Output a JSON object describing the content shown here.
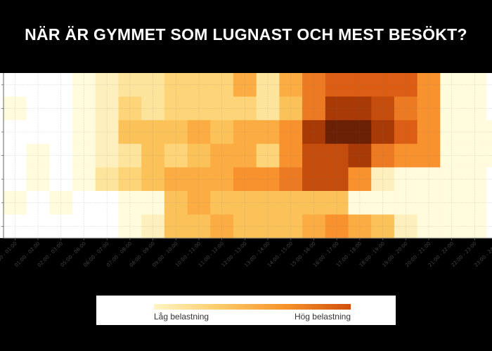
{
  "title": "NÄR ÄR GYMMET SOM LUGNAST OCH MEST BESÖKT?",
  "chart_data": {
    "type": "heatmap",
    "title": "NÄR ÄR GYMMET SOM LUGNAST OCH MEST BESÖKT?",
    "x_categories": [
      "00:00 - 01:00",
      "01:00 - 02:00",
      "02:00 - 03:00",
      "05:00 - 06:00",
      "06:00 - 07:00",
      "07:00 - 08:00",
      "08:00 - 09:00",
      "09:00 - 10:00",
      "10:00 - 11:00",
      "11:00 - 12:00",
      "12:00 - 13:00",
      "13:00 - 14:00",
      "14:00 - 15:00",
      "15:00 - 16:00",
      "16:00 - 17:00",
      "17:00 - 18:00",
      "18:00 - 19:00",
      "19:00 - 20:00",
      "20:00 - 21:00",
      "21:00 - 22:00",
      "22:00 - 23:00",
      "23:00 - 24:00"
    ],
    "value_scale": [
      0,
      12
    ],
    "values": [
      [
        0,
        0,
        0,
        1,
        2,
        3,
        3,
        4,
        4,
        4,
        6,
        3,
        6,
        8,
        9,
        9,
        9,
        9,
        7,
        1,
        1,
        0
      ],
      [
        1,
        0,
        0,
        1,
        2,
        4,
        3,
        4,
        4,
        4,
        4,
        3,
        5,
        8,
        11,
        11,
        10,
        8,
        7,
        1,
        1,
        0
      ],
      [
        0,
        0,
        0,
        1,
        2,
        5,
        5,
        5,
        6,
        5,
        6,
        6,
        7,
        11,
        12,
        12,
        11,
        9,
        7,
        1,
        1,
        1
      ],
      [
        0,
        1,
        0,
        1,
        2,
        3,
        5,
        4,
        5,
        6,
        6,
        4,
        7,
        10,
        10,
        11,
        8,
        7,
        7,
        1,
        1,
        1
      ],
      [
        0,
        1,
        0,
        1,
        3,
        4,
        5,
        6,
        6,
        6,
        7,
        7,
        8,
        10,
        10,
        7,
        2,
        1,
        1,
        1,
        1,
        0
      ],
      [
        1,
        0,
        1,
        0,
        0,
        1,
        1,
        5,
        6,
        5,
        5,
        5,
        5,
        5,
        5,
        1,
        1,
        1,
        1,
        1,
        1,
        0
      ],
      [
        0,
        0,
        0,
        0,
        0,
        1,
        2,
        5,
        5,
        6,
        5,
        5,
        5,
        6,
        7,
        6,
        5,
        2,
        1,
        1,
        1,
        0
      ]
    ],
    "colorscale": [
      "#ffffff",
      "#fffbdc",
      "#fdf0bc",
      "#fde49c",
      "#fdd478",
      "#fcc25a",
      "#fbac42",
      "#f7922e",
      "#ec7a22",
      "#dc5e14",
      "#c44c0c",
      "#a83a08",
      "#6a2004"
    ],
    "grid": true,
    "legend": {
      "low_label": "Låg belastning",
      "high_label": "Hög belastning",
      "placement": "bottom"
    }
  }
}
